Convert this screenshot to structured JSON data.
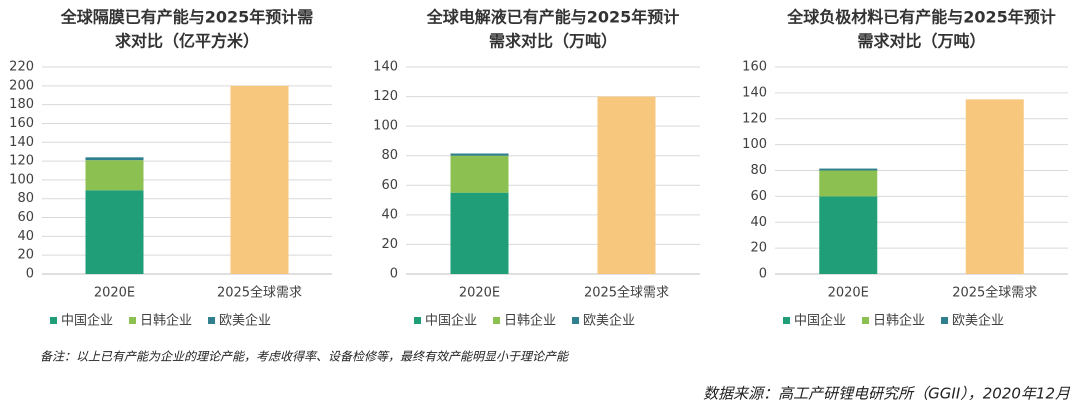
{
  "chart_data": [
    {
      "type": "stacked-bar",
      "title": [
        "全球隔膜已有产能与2025年预计需",
        "求对比（亿平方米）"
      ],
      "categories": [
        "2020E",
        "2025全球需求"
      ],
      "series": [
        {
          "name": "中国企业",
          "color": "#1f9e78",
          "values": [
            89,
            null
          ]
        },
        {
          "name": "日韩企业",
          "color": "#8cc152",
          "values": [
            32,
            null
          ]
        },
        {
          "name": "欧美企业",
          "color": "#2f7f8f",
          "values": [
            3,
            null
          ]
        },
        {
          "color": "#f8c77e",
          "values": [
            null,
            200
          ]
        }
      ],
      "ylim": [
        0,
        220
      ],
      "yticks": [
        0,
        20,
        40,
        60,
        80,
        100,
        120,
        140,
        160,
        180,
        200,
        220
      ],
      "grid": true
    },
    {
      "type": "stacked-bar",
      "title": [
        "全球电解液已有产能与2025年预计",
        "需求对比（万吨）"
      ],
      "categories": [
        "2020E",
        "2025全球需求"
      ],
      "series": [
        {
          "name": "中国企业",
          "color": "#1f9e78",
          "values": [
            55,
            null
          ]
        },
        {
          "name": "日韩企业",
          "color": "#8cc152",
          "values": [
            25,
            null
          ]
        },
        {
          "name": "欧美企业",
          "color": "#2f7f8f",
          "values": [
            1.5,
            null
          ]
        },
        {
          "color": "#f8c77e",
          "values": [
            null,
            120
          ]
        }
      ],
      "ylim": [
        0,
        140
      ],
      "yticks": [
        0,
        20,
        40,
        60,
        80,
        100,
        120,
        140
      ],
      "grid": true
    },
    {
      "type": "stacked-bar",
      "title": [
        "全球负极材料已有产能与2025年预计",
        "需求对比（万吨）"
      ],
      "categories": [
        "2020E",
        "2025全球需求"
      ],
      "series": [
        {
          "name": "中国企业",
          "color": "#1f9e78",
          "values": [
            60,
            null
          ]
        },
        {
          "name": "日韩企业",
          "color": "#8cc152",
          "values": [
            20,
            null
          ]
        },
        {
          "name": "欧美企业",
          "color": "#2f7f8f",
          "values": [
            1.5,
            null
          ]
        },
        {
          "color": "#f8c77e",
          "values": [
            null,
            135
          ]
        }
      ],
      "ylim": [
        0,
        160
      ],
      "yticks": [
        0,
        20,
        40,
        60,
        80,
        100,
        120,
        140,
        160
      ],
      "grid": true
    }
  ],
  "notes": {
    "remark": "备注：以上已有产能为企业的理论产能，考虑收得率、设备检修等，最终有效产能明显小于理论产能",
    "source": "数据来源：高工产研锂电研究所（GGII），2020年12月"
  }
}
